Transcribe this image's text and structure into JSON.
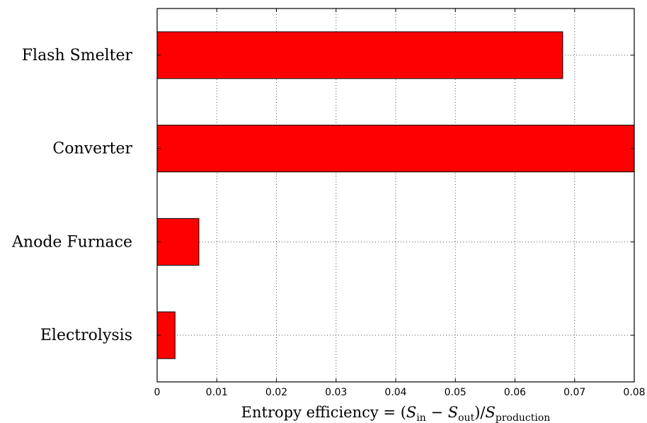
{
  "chart_data": {
    "type": "bar",
    "orientation": "horizontal",
    "categories": [
      "Flash Smelter",
      "Converter",
      "Anode Furnace",
      "Electrolysis"
    ],
    "values": [
      0.068,
      0.08,
      0.007,
      0.003
    ],
    "xlabel": {
      "prefix": "Entropy efficiency = (",
      "s_in_base": "S",
      "s_in_sub": "in",
      "minus": " − ",
      "s_out_base": "S",
      "s_out_sub": "out",
      "slash": ")/",
      "s_prod_base": "S",
      "s_prod_sub": "production"
    },
    "xlim": [
      0,
      0.08
    ],
    "xticks": [
      "0",
      "0.01",
      "0.02",
      "0.03",
      "0.04",
      "0.05",
      "0.06",
      "0.07",
      "0.08"
    ],
    "grid": true,
    "bar_color": "#ff0000"
  }
}
